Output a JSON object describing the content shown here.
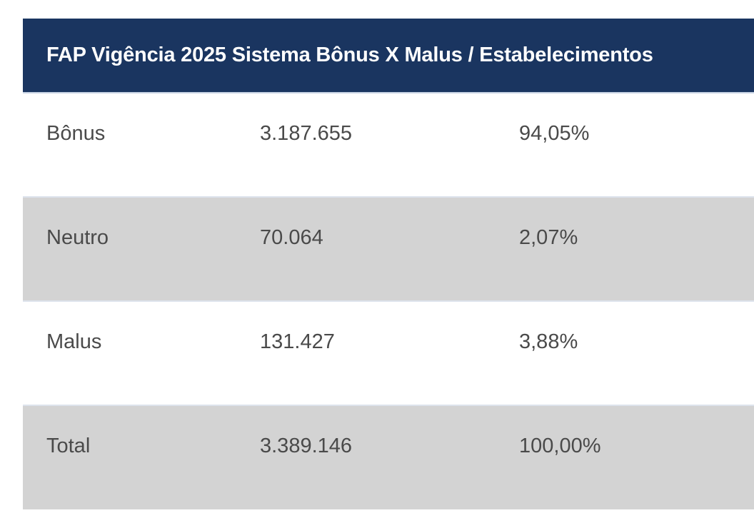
{
  "table": {
    "header": "FAP Vigência 2025 Sistema Bônus X Malus / Estabelecimentos",
    "rows": [
      {
        "label": "Bônus",
        "count": "3.187.655",
        "percent": "94,05%"
      },
      {
        "label": "Neutro",
        "count": "70.064",
        "percent": "2,07%"
      },
      {
        "label": "Malus",
        "count": "131.427",
        "percent": "3,88%"
      },
      {
        "label": "Total",
        "count": "3.389.146",
        "percent": "100,00%"
      }
    ]
  },
  "colors": {
    "header_background": "#1a3560",
    "header_text": "#ffffff",
    "row_alt_background": "#d3d3d3",
    "row_background": "#ffffff",
    "body_text": "#4a4a4a"
  }
}
